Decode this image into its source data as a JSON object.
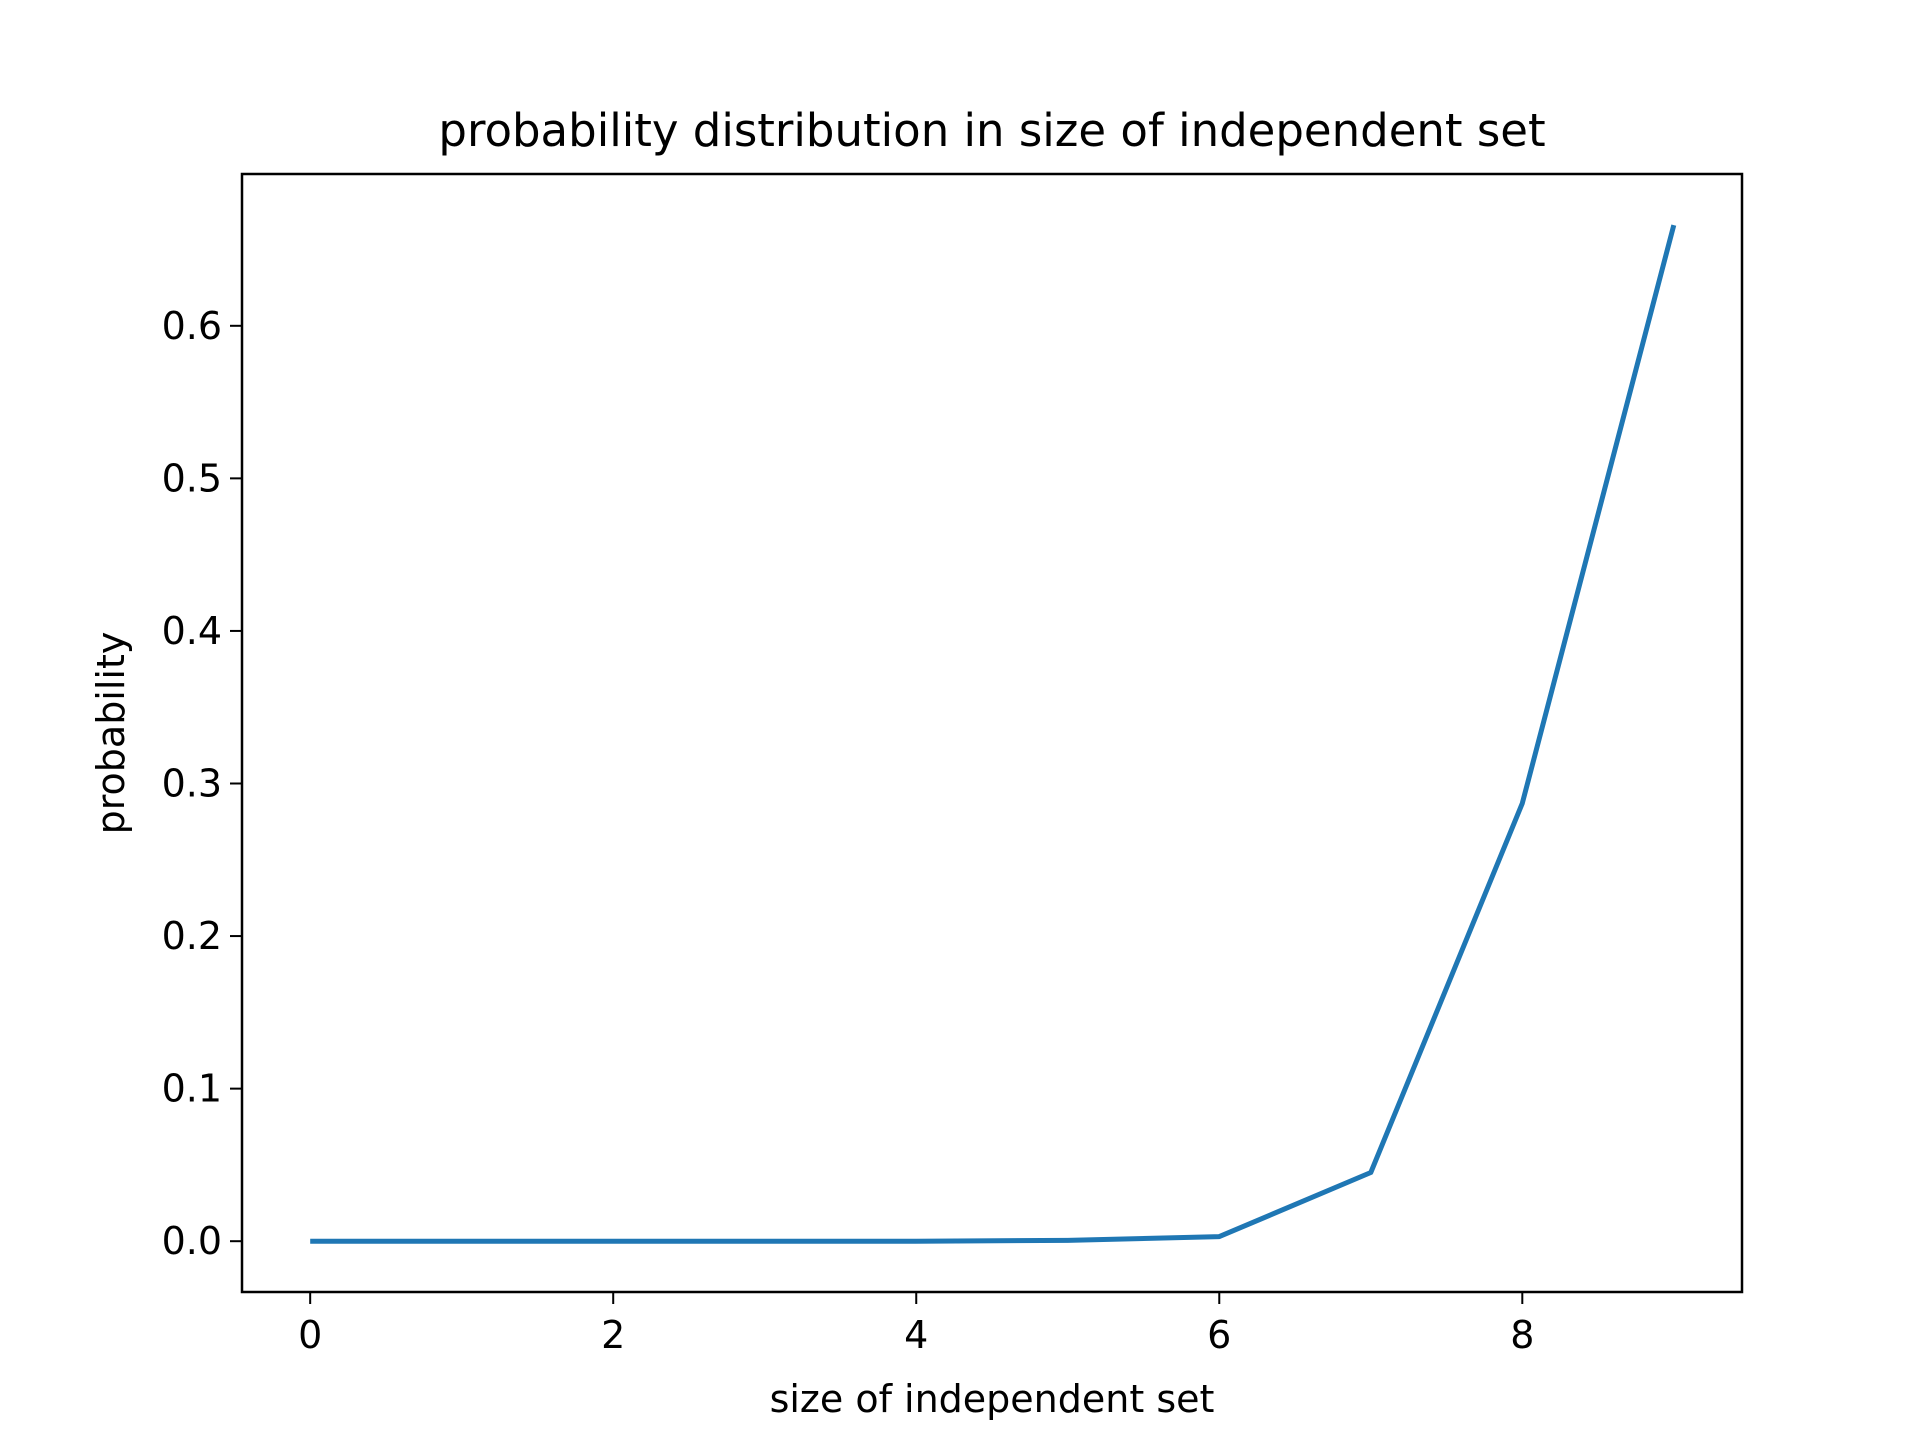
{
  "chart_data": {
    "type": "line",
    "title": "probability distribution in size of independent set",
    "xlabel": "size of independent set",
    "ylabel": "probability",
    "xlim": [
      -0.45,
      9.45
    ],
    "ylim": [
      -0.0333,
      0.6995
    ],
    "x_ticks": [
      0,
      2,
      4,
      6,
      8
    ],
    "x_tick_labels": [
      "0",
      "2",
      "4",
      "6",
      "8"
    ],
    "y_ticks": [
      0.0,
      0.1,
      0.2,
      0.3,
      0.4,
      0.5,
      0.6
    ],
    "y_tick_labels": [
      "0.0",
      "0.1",
      "0.2",
      "0.3",
      "0.4",
      "0.5",
      "0.6"
    ],
    "grid": false,
    "series": [
      {
        "color": "#1f77b4",
        "x": [
          0,
          1,
          2,
          3,
          4,
          5,
          6,
          7,
          8,
          9
        ],
        "y": [
          0.0,
          0.0,
          0.0,
          0.0,
          0.0,
          0.0005,
          0.003,
          0.045,
          0.287,
          0.666
        ]
      }
    ]
  }
}
